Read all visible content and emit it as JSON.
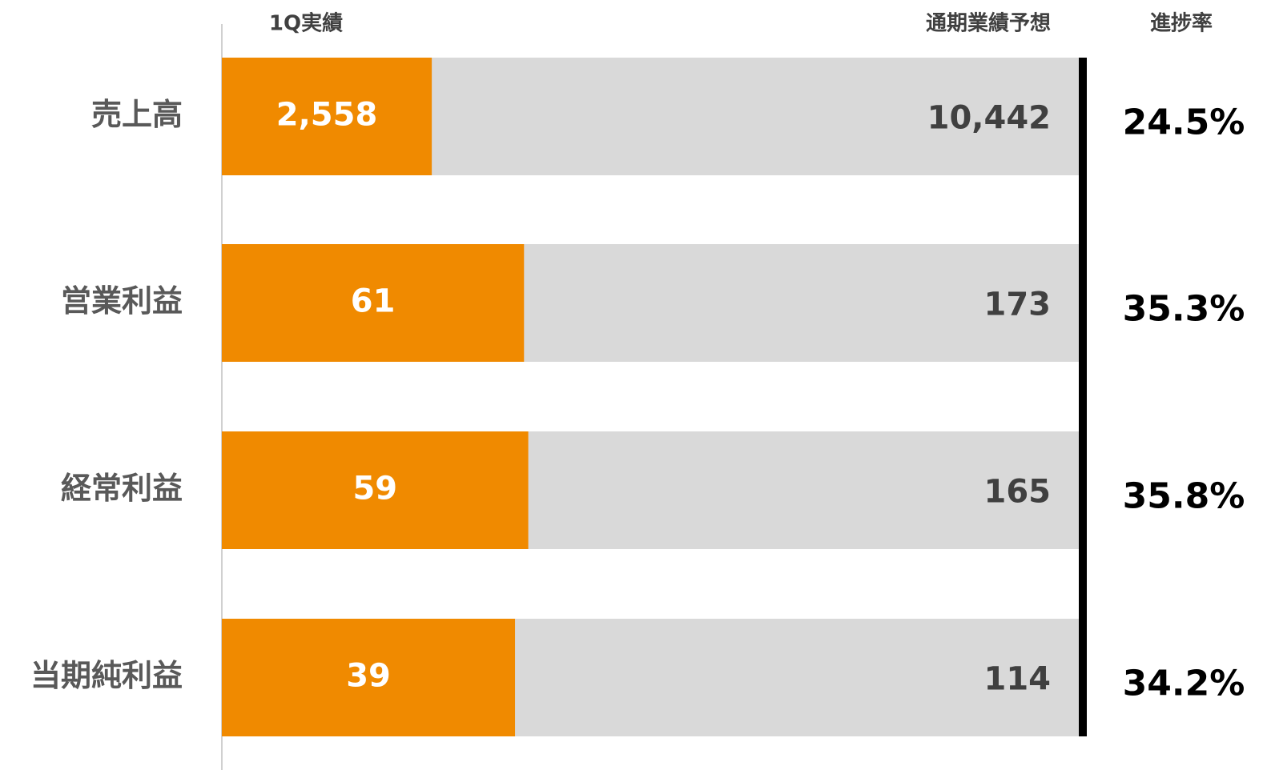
{
  "chart_data": {
    "type": "progress_bar",
    "categories": [
      "売上高",
      "営業利益",
      "経常利益",
      "当期純利益"
    ],
    "series": [
      {
        "name": "1Q実績",
        "color": "#f08a00",
        "values": [
          2558,
          61,
          59,
          39
        ],
        "value_labels": [
          "2,558",
          "61",
          "59",
          "39"
        ]
      },
      {
        "name": "通期業績予想",
        "color": "#d9d9d9",
        "values": [
          10442,
          173,
          165,
          114
        ],
        "value_labels": [
          "10,442",
          "173",
          "165",
          "114"
        ]
      }
    ],
    "progress_rate": {
      "name": "進捗率",
      "values": [
        24.5,
        35.3,
        35.8,
        34.2
      ],
      "value_labels": [
        "24.5%",
        "35.3%",
        "35.8%",
        "34.2%"
      ]
    }
  }
}
